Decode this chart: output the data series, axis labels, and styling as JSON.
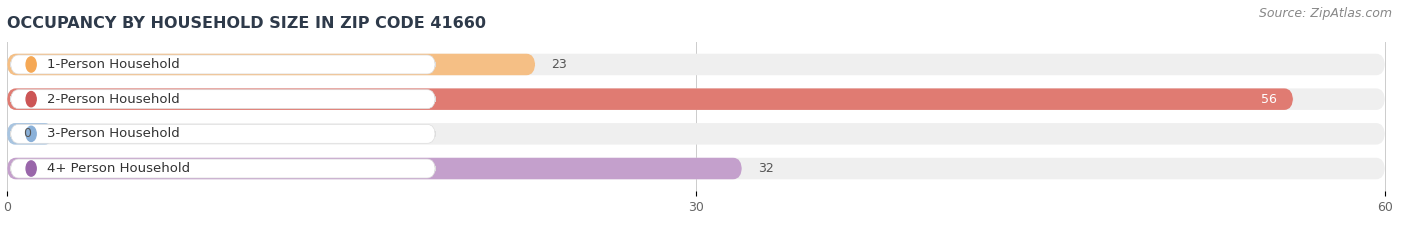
{
  "title": "OCCUPANCY BY HOUSEHOLD SIZE IN ZIP CODE 41660",
  "source": "Source: ZipAtlas.com",
  "categories": [
    "1-Person Household",
    "2-Person Household",
    "3-Person Household",
    "4+ Person Household"
  ],
  "values": [
    23,
    56,
    0,
    32
  ],
  "bar_colors": [
    "#f5bf85",
    "#e07b72",
    "#a8c4e0",
    "#c4a0cc"
  ],
  "label_dot_colors": [
    "#f5a855",
    "#cc5555",
    "#8ab0d8",
    "#9966aa"
  ],
  "bar_bg_color": "#efefef",
  "xlim": [
    0,
    60
  ],
  "xticks": [
    0,
    30,
    60
  ],
  "title_color": "#2e3a4a",
  "title_fontsize": 11.5,
  "label_fontsize": 9.5,
  "value_fontsize": 9,
  "source_fontsize": 9,
  "tick_fontsize": 9,
  "background_color": "#ffffff"
}
